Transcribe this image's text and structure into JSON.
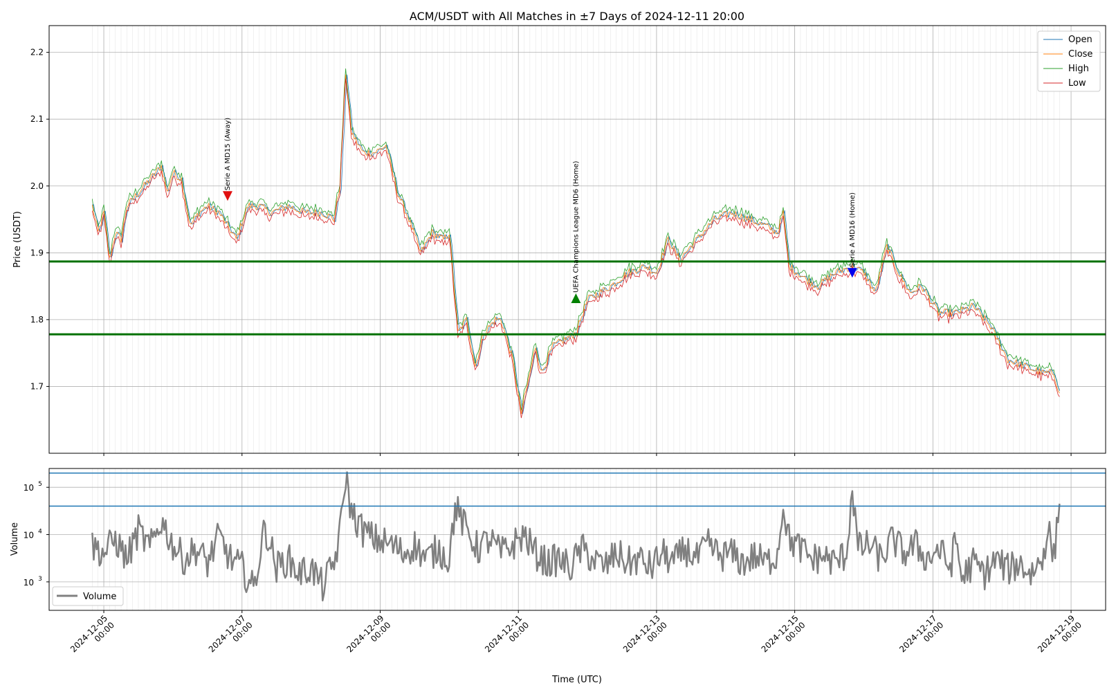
{
  "chart_data": {
    "title": "ACM/USDT with All Matches in ±7 Days of 2024-12-11 20:00",
    "xlabel": "Time (UTC)",
    "x_ticks": [
      {
        "date": "2024-12-05",
        "l1": "2024-12-05",
        "l2": "00:00"
      },
      {
        "date": "2024-12-07",
        "l1": "2024-12-07",
        "l2": "00:00"
      },
      {
        "date": "2024-12-09",
        "l1": "2024-12-09",
        "l2": "00:00"
      },
      {
        "date": "2024-12-11",
        "l1": "2024-12-11",
        "l2": "00:00"
      },
      {
        "date": "2024-12-13",
        "l1": "2024-12-13",
        "l2": "00:00"
      },
      {
        "date": "2024-12-15",
        "l1": "2024-12-15",
        "l2": "00:00"
      },
      {
        "date": "2024-12-17",
        "l1": "2024-12-17",
        "l2": "00:00"
      },
      {
        "date": "2024-12-19",
        "l1": "2024-12-19",
        "l2": "00:00"
      }
    ],
    "x_range": [
      "2024-12-04 05:00",
      "2024-12-19 12:00"
    ],
    "price_panel": {
      "type": "line",
      "ylabel": "Price (USDT)",
      "ylim": [
        1.6,
        2.24
      ],
      "yticks": [
        "1.7",
        "1.8",
        "1.9",
        "2.0",
        "2.1",
        "2.2"
      ],
      "legend_position": "top-right",
      "grid": true,
      "series": [
        {
          "name": "Open",
          "color": "#1f77b4"
        },
        {
          "name": "Close",
          "color": "#ff7f0e"
        },
        {
          "name": "High",
          "color": "#2ca02c"
        },
        {
          "name": "Low",
          "color": "#d62728"
        }
      ],
      "close_points": [
        [
          "2024-12-04 20:00",
          1.97
        ],
        [
          "2024-12-04 22:00",
          1.93
        ],
        [
          "2024-12-05 00:00",
          1.96
        ],
        [
          "2024-12-05 02:00",
          1.89
        ],
        [
          "2024-12-05 04:00",
          1.93
        ],
        [
          "2024-12-05 06:00",
          1.92
        ],
        [
          "2024-12-05 08:00",
          1.97
        ],
        [
          "2024-12-05 12:00",
          1.99
        ],
        [
          "2024-12-05 16:00",
          2.01
        ],
        [
          "2024-12-05 20:00",
          2.03
        ],
        [
          "2024-12-05 22:00",
          1.99
        ],
        [
          "2024-12-06 00:00",
          2.02
        ],
        [
          "2024-12-06 03:00",
          2.01
        ],
        [
          "2024-12-06 06:00",
          1.94
        ],
        [
          "2024-12-06 09:00",
          1.96
        ],
        [
          "2024-12-06 12:00",
          1.97
        ],
        [
          "2024-12-06 16:00",
          1.96
        ],
        [
          "2024-12-06 19:00",
          1.94
        ],
        [
          "2024-12-06 22:00",
          1.92
        ],
        [
          "2024-12-07 02:00",
          1.97
        ],
        [
          "2024-12-07 06:00",
          1.97
        ],
        [
          "2024-12-07 10:00",
          1.96
        ],
        [
          "2024-12-07 16:00",
          1.97
        ],
        [
          "2024-12-07 22:00",
          1.96
        ],
        [
          "2024-12-08 04:00",
          1.96
        ],
        [
          "2024-12-08 08:00",
          1.95
        ],
        [
          "2024-12-08 10:00",
          2.0
        ],
        [
          "2024-12-08 12:00",
          2.17
        ],
        [
          "2024-12-08 14:00",
          2.08
        ],
        [
          "2024-12-08 18:00",
          2.05
        ],
        [
          "2024-12-08 22:00",
          2.05
        ],
        [
          "2024-12-09 02:00",
          2.06
        ],
        [
          "2024-12-09 06:00",
          1.99
        ],
        [
          "2024-12-09 10:00",
          1.95
        ],
        [
          "2024-12-09 14:00",
          1.9
        ],
        [
          "2024-12-09 18:00",
          1.93
        ],
        [
          "2024-12-09 22:00",
          1.92
        ],
        [
          "2024-12-10 00:00",
          1.93
        ],
        [
          "2024-12-10 03:00",
          1.78
        ],
        [
          "2024-12-10 06:00",
          1.8
        ],
        [
          "2024-12-10 09:00",
          1.73
        ],
        [
          "2024-12-10 12:00",
          1.78
        ],
        [
          "2024-12-10 16:00",
          1.8
        ],
        [
          "2024-12-10 18:00",
          1.8
        ],
        [
          "2024-12-10 22:00",
          1.74
        ],
        [
          "2024-12-11 01:00",
          1.66
        ],
        [
          "2024-12-11 03:00",
          1.7
        ],
        [
          "2024-12-11 06:00",
          1.76
        ],
        [
          "2024-12-11 08:00",
          1.72
        ],
        [
          "2024-12-11 12:00",
          1.76
        ],
        [
          "2024-12-11 16:00",
          1.77
        ],
        [
          "2024-12-11 20:00",
          1.78
        ],
        [
          "2024-12-12 00:00",
          1.83
        ],
        [
          "2024-12-12 04:00",
          1.84
        ],
        [
          "2024-12-12 08:00",
          1.85
        ],
        [
          "2024-12-12 14:00",
          1.87
        ],
        [
          "2024-12-12 20:00",
          1.88
        ],
        [
          "2024-12-13 00:00",
          1.87
        ],
        [
          "2024-12-13 04:00",
          1.92
        ],
        [
          "2024-12-13 08:00",
          1.89
        ],
        [
          "2024-12-13 14:00",
          1.92
        ],
        [
          "2024-12-13 20:00",
          1.95
        ],
        [
          "2024-12-14 02:00",
          1.96
        ],
        [
          "2024-12-14 08:00",
          1.95
        ],
        [
          "2024-12-14 14:00",
          1.94
        ],
        [
          "2024-12-14 18:00",
          1.93
        ],
        [
          "2024-12-14 20:00",
          1.96
        ],
        [
          "2024-12-14 22:00",
          1.88
        ],
        [
          "2024-12-15 04:00",
          1.86
        ],
        [
          "2024-12-15 08:00",
          1.85
        ],
        [
          "2024-12-15 14:00",
          1.87
        ],
        [
          "2024-12-15 20:00",
          1.88
        ],
        [
          "2024-12-16 00:00",
          1.87
        ],
        [
          "2024-12-16 04:00",
          1.84
        ],
        [
          "2024-12-16 08:00",
          1.91
        ],
        [
          "2024-12-16 12:00",
          1.87
        ],
        [
          "2024-12-16 16:00",
          1.84
        ],
        [
          "2024-12-16 20:00",
          1.85
        ],
        [
          "2024-12-17 02:00",
          1.81
        ],
        [
          "2024-12-17 08:00",
          1.81
        ],
        [
          "2024-12-17 14:00",
          1.82
        ],
        [
          "2024-12-17 20:00",
          1.79
        ],
        [
          "2024-12-18 02:00",
          1.74
        ],
        [
          "2024-12-18 08:00",
          1.73
        ],
        [
          "2024-12-18 14:00",
          1.72
        ],
        [
          "2024-12-18 18:00",
          1.72
        ],
        [
          "2024-12-18 20:00",
          1.69
        ]
      ],
      "hlines": [
        {
          "value": 1.887,
          "color": "#007000"
        },
        {
          "value": 1.778,
          "color": "#007000"
        }
      ],
      "annotations": [
        {
          "text": "Serie A MD15 (Away)",
          "x": "2024-12-06 19:00",
          "y": 1.985,
          "marker": "down",
          "color": "#e01010"
        },
        {
          "text": "UEFA Champions League MD6 (Home)",
          "x": "2024-12-11 20:00",
          "y": 1.832,
          "marker": "up",
          "color": "#008000"
        },
        {
          "text": "Serie A MD16 (Home)",
          "x": "2024-12-15 20:00",
          "y": 1.87,
          "marker": "down",
          "color": "#0000ee"
        }
      ]
    },
    "volume_panel": {
      "type": "line",
      "ylabel": "Volume",
      "yscale": "log",
      "ylim": [
        250,
        250000
      ],
      "yticks": [
        {
          "value": 1000,
          "base": "10",
          "exp": "3"
        },
        {
          "value": 10000,
          "base": "10",
          "exp": "4"
        },
        {
          "value": 100000,
          "base": "10",
          "exp": "5"
        }
      ],
      "legend_position": "bottom-left",
      "series": [
        {
          "name": "Volume",
          "color": "#808080"
        }
      ],
      "points": [
        [
          "2024-12-04 20:00",
          6000
        ],
        [
          "2024-12-05 00:00",
          4000
        ],
        [
          "2024-12-05 04:00",
          8000
        ],
        [
          "2024-12-05 08:00",
          3000
        ],
        [
          "2024-12-05 12:00",
          12000
        ],
        [
          "2024-12-05 16:00",
          5000
        ],
        [
          "2024-12-05 20:00",
          20000
        ],
        [
          "2024-12-06 00:00",
          6000
        ],
        [
          "2024-12-06 04:00",
          3000
        ],
        [
          "2024-12-06 08:00",
          5000
        ],
        [
          "2024-12-06 12:00",
          2500
        ],
        [
          "2024-12-06 16:00",
          9000
        ],
        [
          "2024-12-06 20:00",
          3000
        ],
        [
          "2024-12-07 00:00",
          2000
        ],
        [
          "2024-12-07 04:00",
          700
        ],
        [
          "2024-12-07 08:00",
          15000
        ],
        [
          "2024-12-07 12:00",
          2000
        ],
        [
          "2024-12-07 16:00",
          3000
        ],
        [
          "2024-12-07 20:00",
          1500
        ],
        [
          "2024-12-08 00:00",
          2000
        ],
        [
          "2024-12-08 04:00",
          800
        ],
        [
          "2024-12-08 08:00",
          2500
        ],
        [
          "2024-12-08 10:00",
          10000
        ],
        [
          "2024-12-08 12:00",
          180000
        ],
        [
          "2024-12-08 14:00",
          30000
        ],
        [
          "2024-12-08 18:00",
          12000
        ],
        [
          "2024-12-08 22:00",
          8000
        ],
        [
          "2024-12-09 04:00",
          6000
        ],
        [
          "2024-12-09 08:00",
          4000
        ],
        [
          "2024-12-09 12:00",
          6000
        ],
        [
          "2024-12-09 16:00",
          3000
        ],
        [
          "2024-12-09 20:00",
          5000
        ],
        [
          "2024-12-10 00:00",
          3000
        ],
        [
          "2024-12-10 02:00",
          40000
        ],
        [
          "2024-12-10 06:00",
          12000
        ],
        [
          "2024-12-10 10:00",
          5000
        ],
        [
          "2024-12-10 14:00",
          8000
        ],
        [
          "2024-12-10 18:00",
          4000
        ],
        [
          "2024-12-10 22:00",
          6000
        ],
        [
          "2024-12-11 02:00",
          10000
        ],
        [
          "2024-12-11 06:00",
          4000
        ],
        [
          "2024-12-11 10:00",
          2500
        ],
        [
          "2024-12-11 14:00",
          3000
        ],
        [
          "2024-12-11 18:00",
          2000
        ],
        [
          "2024-12-11 22:00",
          5000
        ],
        [
          "2024-12-12 02:00",
          3000
        ],
        [
          "2024-12-12 06:00",
          2000
        ],
        [
          "2024-12-12 10:00",
          4000
        ],
        [
          "2024-12-12 14:00",
          2500
        ],
        [
          "2024-12-12 18:00",
          3000
        ],
        [
          "2024-12-12 22:00",
          2000
        ],
        [
          "2024-12-13 02:00",
          4000
        ],
        [
          "2024-12-13 06:00",
          2500
        ],
        [
          "2024-12-13 10:00",
          5000
        ],
        [
          "2024-12-13 14:00",
          3000
        ],
        [
          "2024-12-13 18:00",
          6000
        ],
        [
          "2024-12-13 22:00",
          3500
        ],
        [
          "2024-12-14 02:00",
          4000
        ],
        [
          "2024-12-14 06:00",
          2500
        ],
        [
          "2024-12-14 10:00",
          3500
        ],
        [
          "2024-12-14 14:00",
          2500
        ],
        [
          "2024-12-14 18:00",
          4000
        ],
        [
          "2024-12-14 20:00",
          45000
        ],
        [
          "2024-12-14 22:00",
          8000
        ],
        [
          "2024-12-15 02:00",
          5000
        ],
        [
          "2024-12-15 06:00",
          3000
        ],
        [
          "2024-12-15 10:00",
          3500
        ],
        [
          "2024-12-15 14:00",
          2500
        ],
        [
          "2024-12-15 18:00",
          4000
        ],
        [
          "2024-12-15 20:00",
          100000
        ],
        [
          "2024-12-15 22:00",
          5000
        ],
        [
          "2024-12-16 02:00",
          6000
        ],
        [
          "2024-12-16 06:00",
          3000
        ],
        [
          "2024-12-16 10:00",
          8000
        ],
        [
          "2024-12-16 14:00",
          4000
        ],
        [
          "2024-12-16 18:00",
          6000
        ],
        [
          "2024-12-16 22:00",
          3000
        ],
        [
          "2024-12-17 02:00",
          5000
        ],
        [
          "2024-12-17 06:00",
          2000
        ],
        [
          "2024-12-17 08:00",
          8000
        ],
        [
          "2024-12-17 10:00",
          1200
        ],
        [
          "2024-12-17 14:00",
          2500
        ],
        [
          "2024-12-17 18:00",
          1500
        ],
        [
          "2024-12-17 22:00",
          3000
        ],
        [
          "2024-12-18 02:00",
          1800
        ],
        [
          "2024-12-18 06:00",
          2500
        ],
        [
          "2024-12-18 10:00",
          1500
        ],
        [
          "2024-12-18 14:00",
          3000
        ],
        [
          "2024-12-18 16:00",
          15000
        ],
        [
          "2024-12-18 18:00",
          3000
        ],
        [
          "2024-12-18 20:00",
          45000
        ]
      ],
      "hlines": [
        {
          "value": 200000,
          "color": "#1f77b4"
        },
        {
          "value": 40000,
          "color": "#1f77b4"
        }
      ]
    }
  }
}
